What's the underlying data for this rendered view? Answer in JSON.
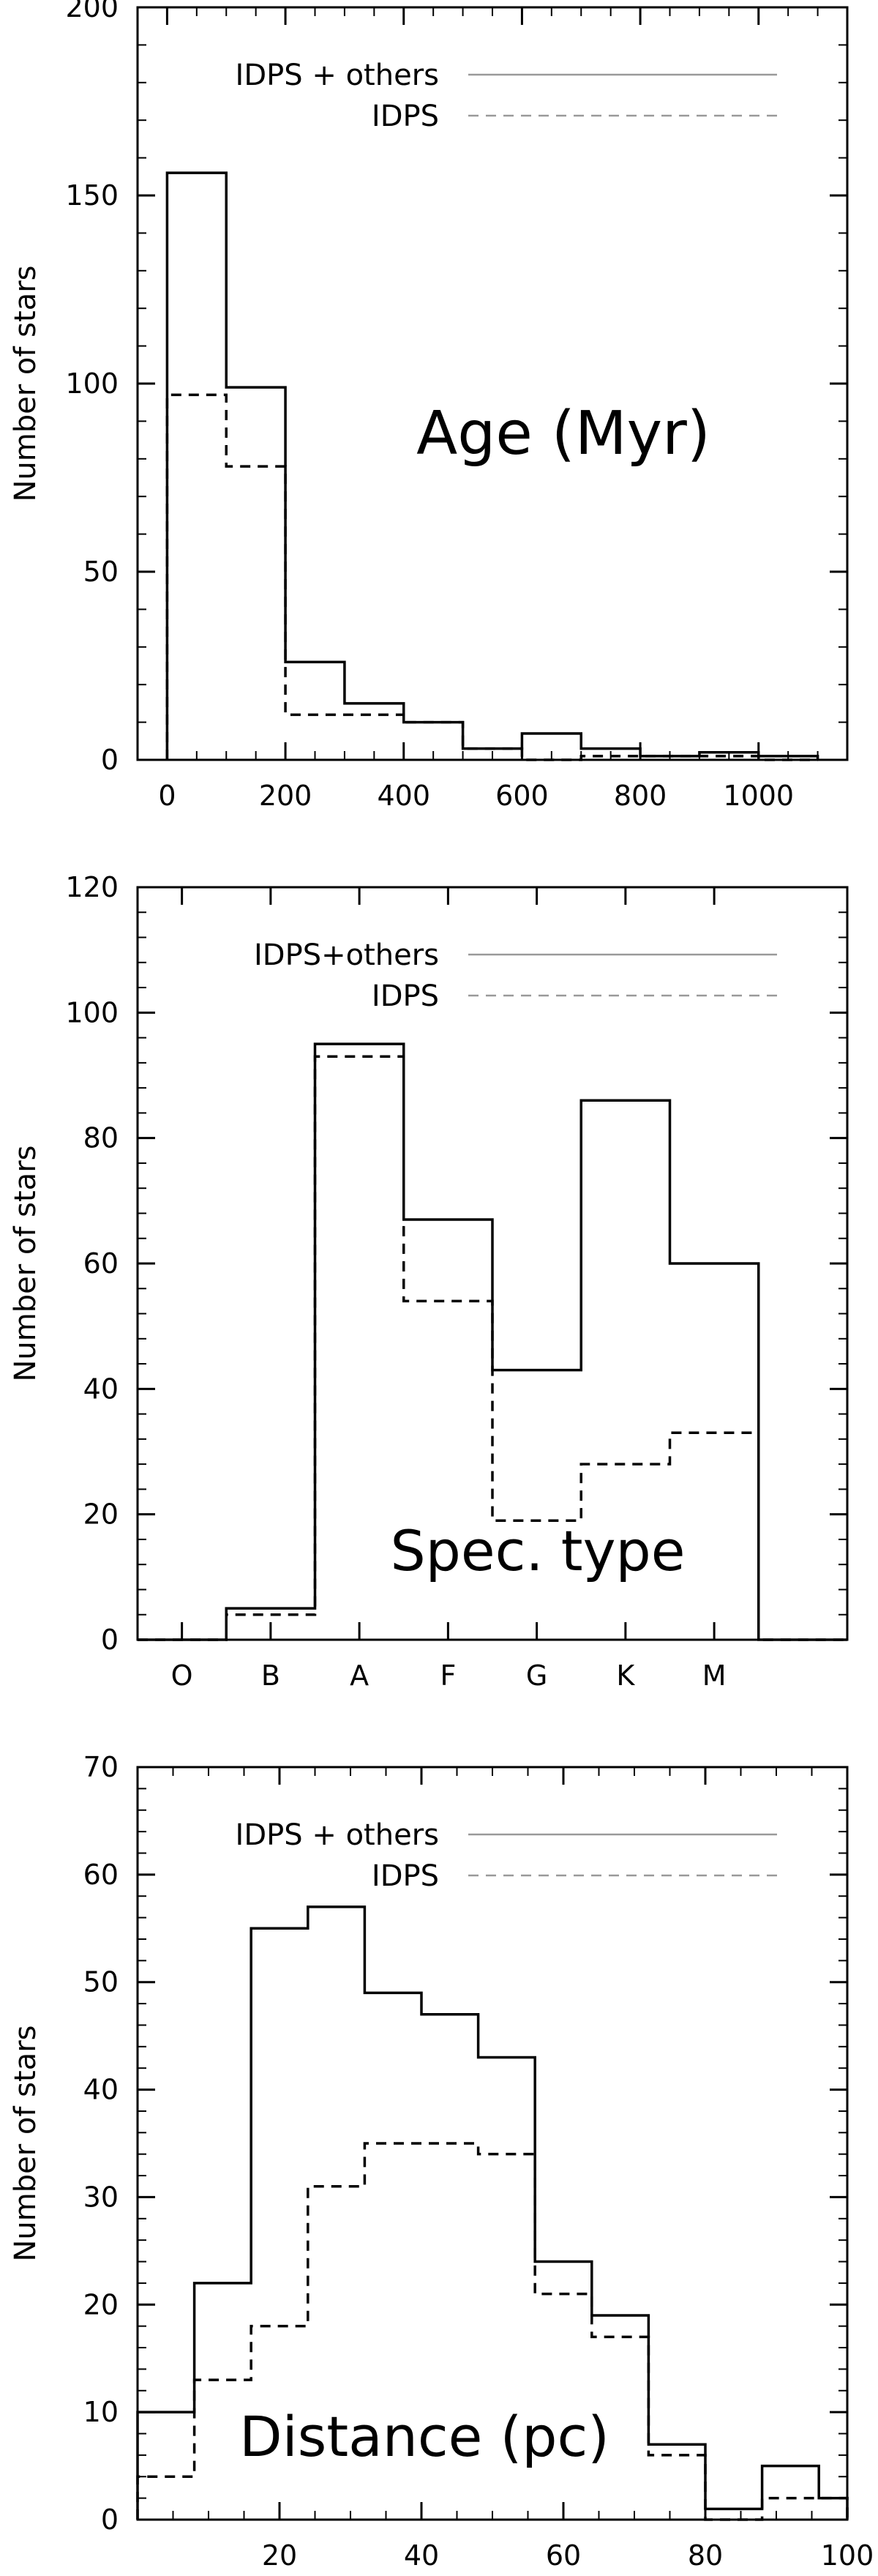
{
  "figure": {
    "ylabel": "Number of stars",
    "line_color": "#000000",
    "legend_line_color": "#999999"
  },
  "chart_data": [
    {
      "type": "histogram",
      "annotation": "Age (Myr)",
      "xlabel": "",
      "ylabel": "Number of stars",
      "xlim": [
        -50,
        1150
      ],
      "ylim": [
        0,
        200
      ],
      "xticks": [
        0,
        200,
        400,
        600,
        800,
        1000
      ],
      "xtick_labels": [
        "0",
        "200",
        "400",
        "600",
        "800",
        "1000"
      ],
      "yticks": [
        0,
        50,
        100,
        150,
        200
      ],
      "ytick_labels": [
        "0",
        "50",
        "100",
        "150",
        "200"
      ],
      "bin_edges": [
        0,
        100,
        200,
        300,
        400,
        500,
        600,
        700,
        800,
        900,
        1000,
        1100
      ],
      "legend_position": "top-right",
      "series": [
        {
          "name": "IDPS + others",
          "style": "solid",
          "values": [
            156,
            99,
            26,
            15,
            10,
            3,
            7,
            3,
            1,
            2,
            1
          ]
        },
        {
          "name": "IDPS",
          "style": "dashed",
          "values": [
            97,
            78,
            12,
            12,
            10,
            3,
            0,
            1,
            1,
            1,
            0
          ]
        }
      ]
    },
    {
      "type": "histogram",
      "annotation": "Spec. type",
      "xlabel": "",
      "ylabel": "Number of stars",
      "xlim": [
        -0.5,
        7.5
      ],
      "ylim": [
        0,
        120
      ],
      "xticks": [
        0,
        1,
        2,
        3,
        4,
        5,
        6
      ],
      "xtick_labels": [
        "O",
        "B",
        "A",
        "F",
        "G",
        "K",
        "M"
      ],
      "yticks": [
        0,
        20,
        40,
        60,
        80,
        100,
        120
      ],
      "ytick_labels": [
        "0",
        "20",
        "40",
        "60",
        "80",
        "100",
        "120"
      ],
      "bin_edges": [
        -0.5,
        0.5,
        1.5,
        2.5,
        3.5,
        4.5,
        5.5,
        6.5,
        7.5
      ],
      "legend_position": "top-right",
      "series": [
        {
          "name": "IDPS+others",
          "style": "solid",
          "values": [
            0,
            5,
            95,
            67,
            43,
            86,
            60,
            0
          ]
        },
        {
          "name": "IDPS",
          "style": "dashed",
          "values": [
            0,
            4,
            93,
            54,
            19,
            28,
            33,
            0
          ]
        }
      ]
    },
    {
      "type": "histogram",
      "annotation": "Distance (pc)",
      "xlabel": "",
      "ylabel": "Number of stars",
      "xlim": [
        0,
        100
      ],
      "ylim": [
        0,
        70
      ],
      "xticks": [
        20,
        40,
        60,
        80,
        100
      ],
      "xtick_labels": [
        "20",
        "40",
        "60",
        "80",
        "100"
      ],
      "yticks": [
        0,
        10,
        20,
        30,
        40,
        50,
        60,
        70
      ],
      "ytick_labels": [
        "0",
        "10",
        "20",
        "30",
        "40",
        "50",
        "60",
        "70"
      ],
      "bin_edges": [
        0,
        8,
        16,
        24,
        32,
        40,
        48,
        56,
        64,
        72,
        80,
        88,
        96,
        100
      ],
      "legend_position": "top-right",
      "series": [
        {
          "name": "IDPS + others",
          "style": "solid",
          "values": [
            10,
            22,
            55,
            57,
            49,
            47,
            43,
            24,
            19,
            7,
            1,
            5,
            2
          ]
        },
        {
          "name": "IDPS",
          "style": "dashed",
          "values": [
            4,
            13,
            18,
            31,
            35,
            35,
            34,
            21,
            17,
            6,
            0,
            2,
            2
          ]
        }
      ]
    }
  ]
}
